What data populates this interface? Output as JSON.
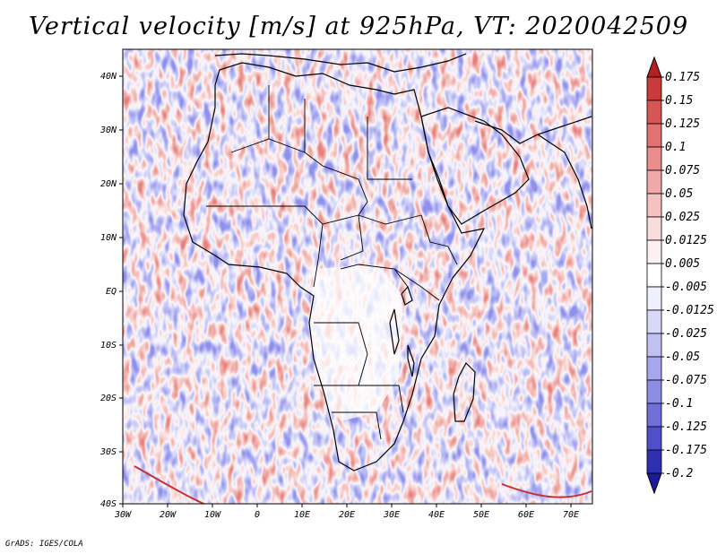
{
  "title": "Vertical velocity [m/s] at 925hPa, VT: 2020042509",
  "credit": "GrADS: IGES/COLA",
  "map": {
    "lat_labels": [
      "40N",
      "30N",
      "20N",
      "10N",
      "EQ",
      "10S",
      "20S",
      "30S",
      "40S"
    ],
    "lon_labels": [
      "30W",
      "20W",
      "10W",
      "0",
      "10E",
      "20E",
      "30E",
      "40E",
      "50E",
      "60E",
      "70E"
    ]
  },
  "colorbar": {
    "levels": [
      "0.175",
      "0.15",
      "0.125",
      "0.1",
      "0.075",
      "0.05",
      "0.025",
      "0.0125",
      "0.005",
      "-0.005",
      "-0.0125",
      "-0.025",
      "-0.05",
      "-0.075",
      "-0.1",
      "-0.125",
      "-0.175",
      "-0.2"
    ],
    "colors": [
      "#b51f1f",
      "#c93a3a",
      "#d85555",
      "#e27171",
      "#ea8d8d",
      "#f0a8a8",
      "#f5c2c2",
      "#f9dcdc",
      "#fdf0f0",
      "#ffffff",
      "#eeeefd",
      "#d8d8f8",
      "#c0c0f2",
      "#a6a6ec",
      "#8c8ce4",
      "#6f6fd9",
      "#4f4fca",
      "#2f2fb2",
      "#1a1aa0"
    ]
  }
}
